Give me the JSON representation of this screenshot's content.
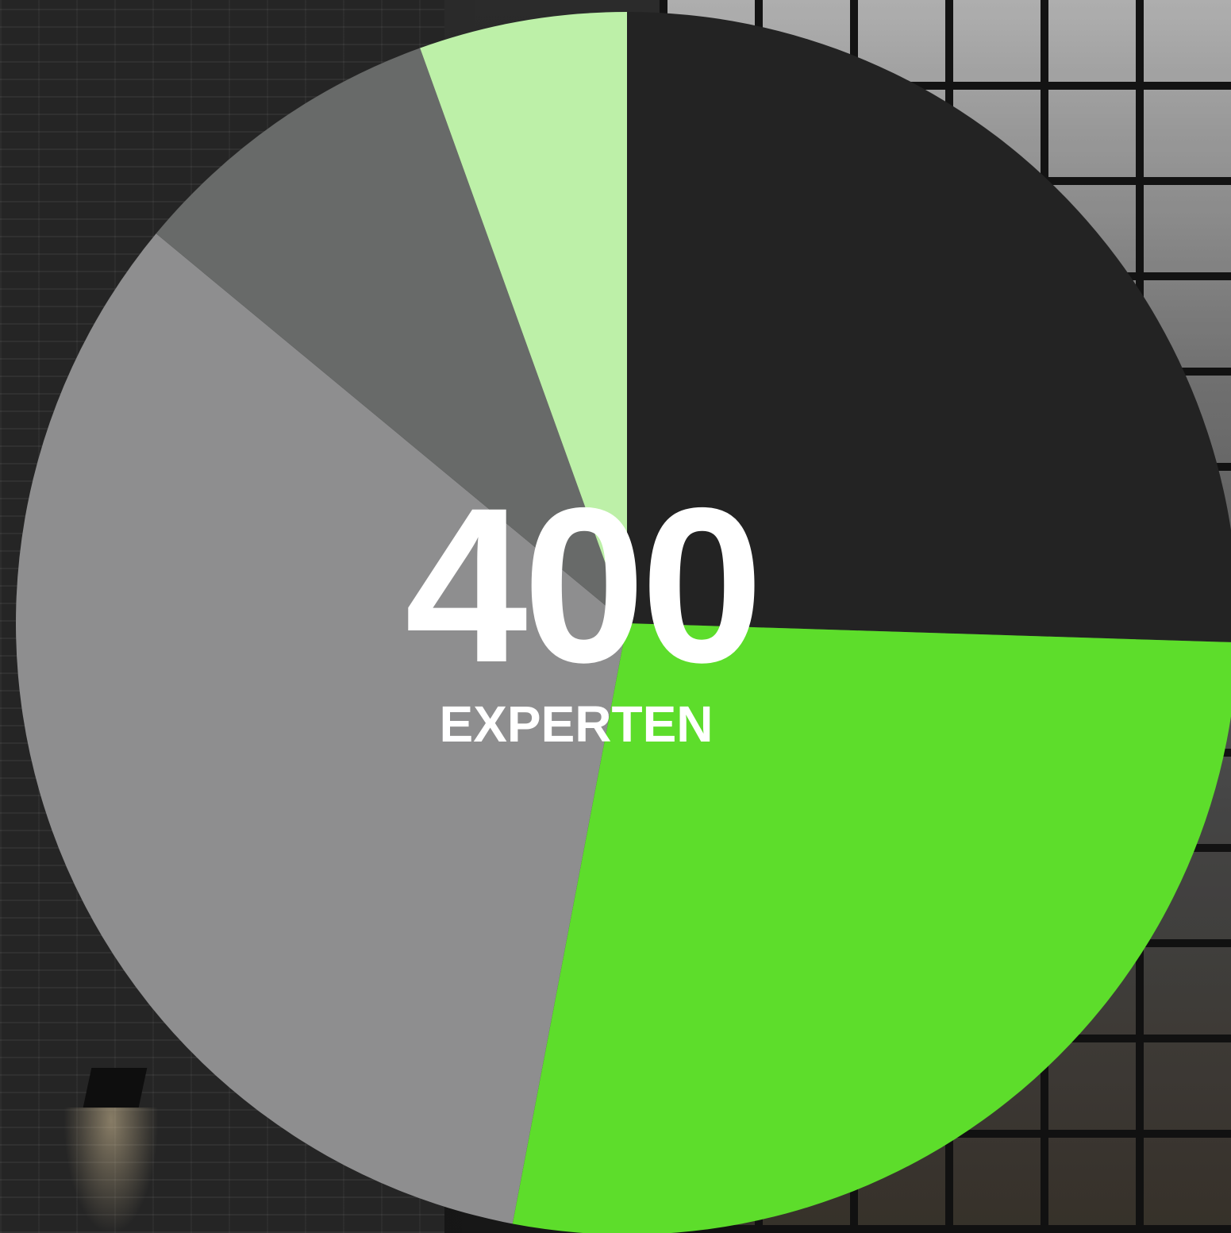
{
  "chart_data": {
    "type": "pie",
    "center_text": {
      "value": "400",
      "label": "EXPERTEN"
    },
    "start": "top",
    "direction": "clockwise",
    "legend": "none",
    "slices": [
      {
        "value": 25.5,
        "color": "#232323"
      },
      {
        "value": 27.5,
        "color": "#5ddd2b"
      },
      {
        "value": 33.0,
        "color": "#8e8e8f"
      },
      {
        "value": 8.5,
        "color": "#686a69"
      },
      {
        "value": 5.5,
        "color": "#bdf0a8"
      }
    ]
  }
}
